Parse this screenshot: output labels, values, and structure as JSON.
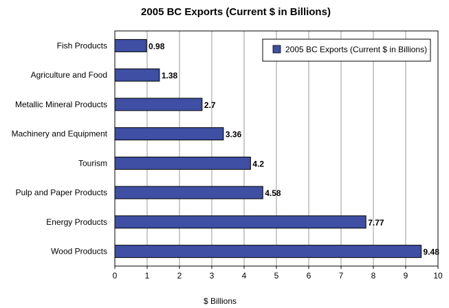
{
  "chart_data": {
    "type": "bar",
    "orientation": "horizontal",
    "title": "2005 BC Exports (Current $ in Billions)",
    "xlabel": "$ Billions",
    "ylabel": "",
    "xlim": [
      0,
      10
    ],
    "xticks": [
      "0",
      "1",
      "2",
      "3",
      "4",
      "5",
      "6",
      "7",
      "8",
      "9",
      "10"
    ],
    "categories": [
      "Fish Products",
      "Agriculture and Food",
      "Metallic Mineral Products",
      "Machinery and Equipment",
      "Tourism",
      "Pulp and Paper Products",
      "Energy Products",
      "Wood Products"
    ],
    "series": [
      {
        "name": "2005 BC Exports (Current $ in Billions)",
        "values": [
          0.98,
          1.38,
          2.7,
          3.36,
          4.2,
          4.58,
          7.77,
          9.48
        ],
        "data_labels": [
          "0.98",
          "1.38",
          "2.7",
          "3.36",
          "4.2",
          "4.58",
          "7.77",
          "9.48"
        ],
        "color": "#3f4fa3"
      }
    ],
    "grid": "vertical",
    "legend_position": "top-right"
  }
}
